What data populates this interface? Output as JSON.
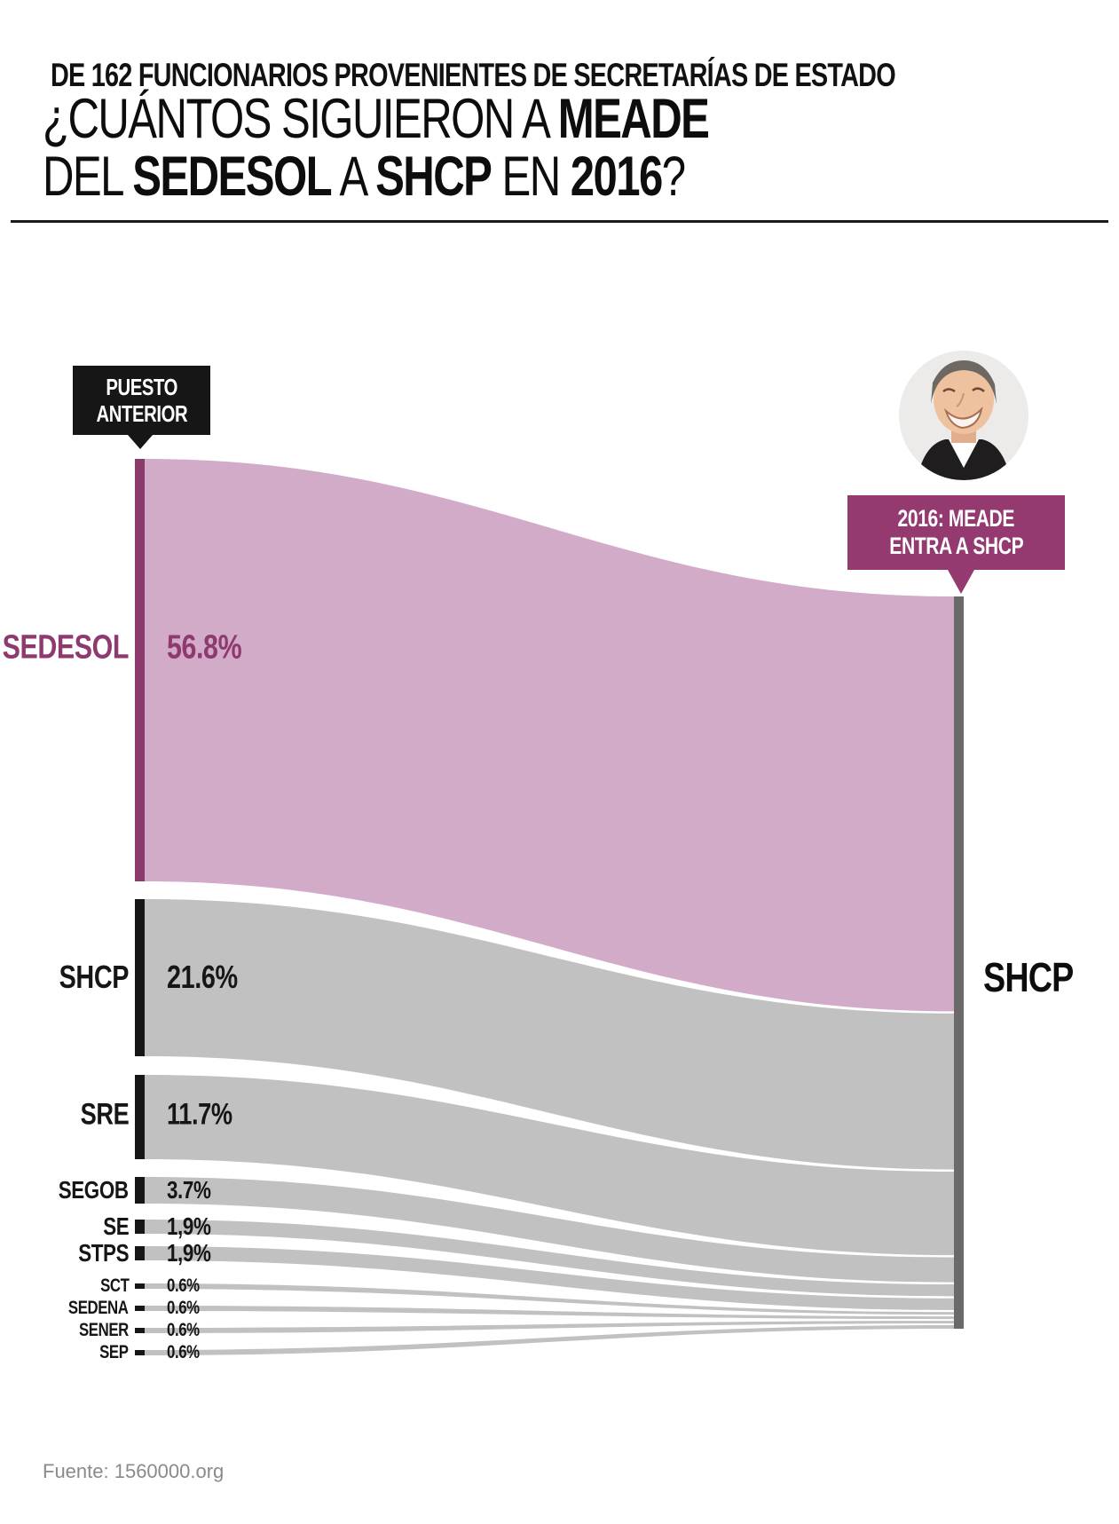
{
  "header": {
    "kicker": "DE 162 FUNCIONARIOS PROVENIENTES DE SECRETARÍAS DE ESTADO",
    "title_line1": [
      {
        "text": "¿CUÁNTOS SIGUIERON A ",
        "bold": false
      },
      {
        "text": "MEADE",
        "bold": true
      }
    ],
    "title_line2": [
      {
        "text": "DEL ",
        "bold": false
      },
      {
        "text": "SEDESOL",
        "bold": true
      },
      {
        "text": " A ",
        "bold": false
      },
      {
        "text": "SHCP",
        "bold": true
      },
      {
        "text": " EN ",
        "bold": false
      },
      {
        "text": "2016",
        "bold": true
      },
      {
        "text": "?",
        "bold": false
      }
    ]
  },
  "annotations": {
    "left_callout": {
      "line1": "PUESTO",
      "line2": "ANTERIOR"
    },
    "right_callout": {
      "line1": "2016: MEADE",
      "line2": [
        {
          "text": "ENTRA A ",
          "bold": false
        },
        {
          "text": "SHCP",
          "bold": true
        }
      ]
    },
    "target_label": "SHCP"
  },
  "chart_data": {
    "type": "sankey",
    "unit": "%",
    "orientation": "left-to-right",
    "target": "SHCP",
    "flows": [
      {
        "source": "SEDESOL",
        "value": 56.8,
        "label": "56.8%",
        "highlight": true
      },
      {
        "source": "SHCP",
        "value": 21.6,
        "label": "21.6%",
        "highlight": false
      },
      {
        "source": "SRE",
        "value": 11.7,
        "label": "11.7%",
        "highlight": false
      },
      {
        "source": "SEGOB",
        "value": 3.7,
        "label": "3.7%",
        "highlight": false
      },
      {
        "source": "SE",
        "value": 1.9,
        "label": "1,9%",
        "highlight": false
      },
      {
        "source": "STPS",
        "value": 1.9,
        "label": "1,9%",
        "highlight": false
      },
      {
        "source": "SCT",
        "value": 0.6,
        "label": "0.6%",
        "highlight": false
      },
      {
        "source": "SEDENA",
        "value": 0.6,
        "label": "0.6%",
        "highlight": false
      },
      {
        "source": "SENER",
        "value": 0.6,
        "label": "0.6%",
        "highlight": false
      },
      {
        "source": "SEP",
        "value": 0.6,
        "label": "0.6%",
        "highlight": false
      }
    ],
    "colors": {
      "highlight_flow": "#d2abc9",
      "flow": "#c1c1c1",
      "highlight_node": "#8c3a6c",
      "node": "#161616",
      "target_node": "#6a6a6a",
      "accent": "#943a71"
    }
  },
  "footer": {
    "source": "Fuente: 1560000.org"
  }
}
